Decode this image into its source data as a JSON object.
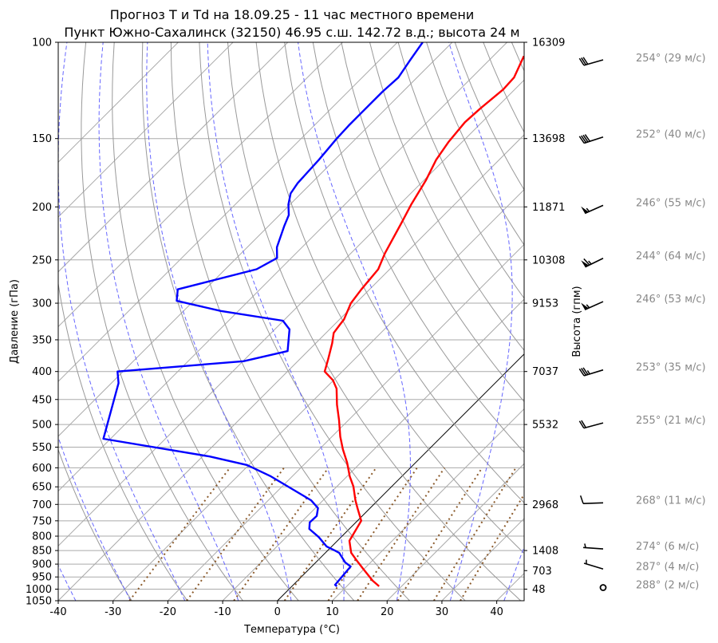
{
  "chart_data": {
    "type": "line",
    "title": [
      "Прогноз T и Td на 18.09.25 - 11 час местного времени",
      "Пункт Южно-Сахалинск (32150) 46.95 с.ш. 142.72 в.д.; высота 24 м"
    ],
    "xlabel": "Температура (°C)",
    "ylabel": "Давление (гПа)",
    "y2label": "Высота (гпм)",
    "xlim": [
      -40,
      45
    ],
    "ylim": [
      1050,
      100
    ],
    "x_ticks": [
      -40,
      -30,
      -20,
      -10,
      0,
      10,
      20,
      30,
      40
    ],
    "p_ticks": [
      100,
      150,
      200,
      250,
      300,
      350,
      400,
      450,
      500,
      550,
      600,
      650,
      700,
      750,
      800,
      850,
      900,
      950,
      1000,
      1050
    ],
    "height_ticks": [
      {
        "p": 100,
        "label": "16309"
      },
      {
        "p": 150,
        "label": "13698"
      },
      {
        "p": 200,
        "label": "11871"
      },
      {
        "p": 250,
        "label": "10308"
      },
      {
        "p": 300,
        "label": "9153"
      },
      {
        "p": 400,
        "label": "7037"
      },
      {
        "p": 500,
        "label": "5532"
      },
      {
        "p": 700,
        "label": "2968"
      },
      {
        "p": 850,
        "label": "1408"
      },
      {
        "p": 925,
        "label": "703"
      },
      {
        "p": 1000,
        "label": "48"
      }
    ],
    "series": [
      {
        "name": "T",
        "color": "#ff0000",
        "points": [
          [
            988,
            15.9
          ],
          [
            965,
            13.7
          ],
          [
            918,
            9.8
          ],
          [
            885,
            7.0
          ],
          [
            858,
            4.7
          ],
          [
            816,
            2.2
          ],
          [
            750,
            0.7
          ],
          [
            711,
            -2.3
          ],
          [
            688,
            -4.1
          ],
          [
            649,
            -7.0
          ],
          [
            622,
            -9.5
          ],
          [
            587,
            -12.5
          ],
          [
            555,
            -15.7
          ],
          [
            526,
            -18.5
          ],
          [
            491,
            -21.7
          ],
          [
            460,
            -24.9
          ],
          [
            430,
            -27.9
          ],
          [
            415,
            -30.1
          ],
          [
            400,
            -33.2
          ],
          [
            380,
            -34.8
          ],
          [
            355,
            -37.0
          ],
          [
            340,
            -38.6
          ],
          [
            328,
            -39.0
          ],
          [
            321,
            -39.2
          ],
          [
            300,
            -40.9
          ],
          [
            283,
            -41.5
          ],
          [
            260,
            -42.1
          ],
          [
            243,
            -43.8
          ],
          [
            214,
            -46.3
          ],
          [
            198,
            -47.9
          ],
          [
            179,
            -49.6
          ],
          [
            164,
            -51.5
          ],
          [
            152,
            -52.5
          ],
          [
            140,
            -53.1
          ],
          [
            132,
            -52.8
          ],
          [
            122,
            -52.1
          ],
          [
            116,
            -52.3
          ],
          [
            106,
            -54.4
          ]
        ]
      },
      {
        "name": "Td",
        "color": "#0000ff",
        "points": [
          [
            988,
            8.2
          ],
          [
            982,
            7.6
          ],
          [
            909,
            7.1
          ],
          [
            894,
            5.4
          ],
          [
            858,
            2.5
          ],
          [
            850,
            1.3
          ],
          [
            836,
            -0.9
          ],
          [
            803,
            -4.1
          ],
          [
            776,
            -7.3
          ],
          [
            755,
            -8.4
          ],
          [
            735,
            -8.3
          ],
          [
            711,
            -9.5
          ],
          [
            688,
            -12.2
          ],
          [
            622,
            -23.9
          ],
          [
            593,
            -30.3
          ],
          [
            572,
            -38.7
          ],
          [
            531,
            -61.3
          ],
          [
            420,
            -68.7
          ],
          [
            400,
            -71.0
          ],
          [
            383,
            -49.9
          ],
          [
            367,
            -43.7
          ],
          [
            335,
            -47.3
          ],
          [
            323,
            -50.1
          ],
          [
            310,
            -63.2
          ],
          [
            297,
            -73.1
          ],
          [
            283,
            -75.0
          ],
          [
            260,
            -64.3
          ],
          [
            248,
            -62.6
          ],
          [
            237,
            -64.6
          ],
          [
            217,
            -67.1
          ],
          [
            207,
            -68.3
          ],
          [
            198,
            -70.3
          ],
          [
            189,
            -71.9
          ],
          [
            181,
            -72.5
          ],
          [
            164,
            -72.9
          ],
          [
            150,
            -73.5
          ],
          [
            142,
            -73.7
          ],
          [
            135,
            -73.7
          ],
          [
            123,
            -73.7
          ],
          [
            116,
            -73.4
          ],
          [
            108,
            -74.4
          ],
          [
            100,
            -75.4
          ]
        ]
      }
    ],
    "highlight_isotherm": 0,
    "winds": [
      {
        "p": 100,
        "dir": 254,
        "speed": 29,
        "label": "254° (29 м/с)"
      },
      {
        "p": 150,
        "dir": 252,
        "speed": 40,
        "label": "252° (40 м/с)"
      },
      {
        "p": 200,
        "dir": 246,
        "speed": 55,
        "label": "246° (55 м/с)"
      },
      {
        "p": 250,
        "dir": 244,
        "speed": 64,
        "label": "244° (64 м/с)"
      },
      {
        "p": 300,
        "dir": 246,
        "speed": 53,
        "label": "246° (53 м/с)"
      },
      {
        "p": 400,
        "dir": 253,
        "speed": 35,
        "label": "253° (35 м/с)"
      },
      {
        "p": 500,
        "dir": 255,
        "speed": 21,
        "label": "255° (21 м/с)"
      },
      {
        "p": 700,
        "dir": 268,
        "speed": 11,
        "label": "268° (11 м/с)"
      },
      {
        "p": 850,
        "dir": 274,
        "speed": 6,
        "label": "274° (6 м/с)"
      },
      {
        "p": 925,
        "dir": 287,
        "speed": 4,
        "label": "287° (4 м/с)"
      },
      {
        "p": 1000,
        "dir": 288,
        "speed": 2,
        "label": "288° (2 м/с)"
      }
    ]
  }
}
